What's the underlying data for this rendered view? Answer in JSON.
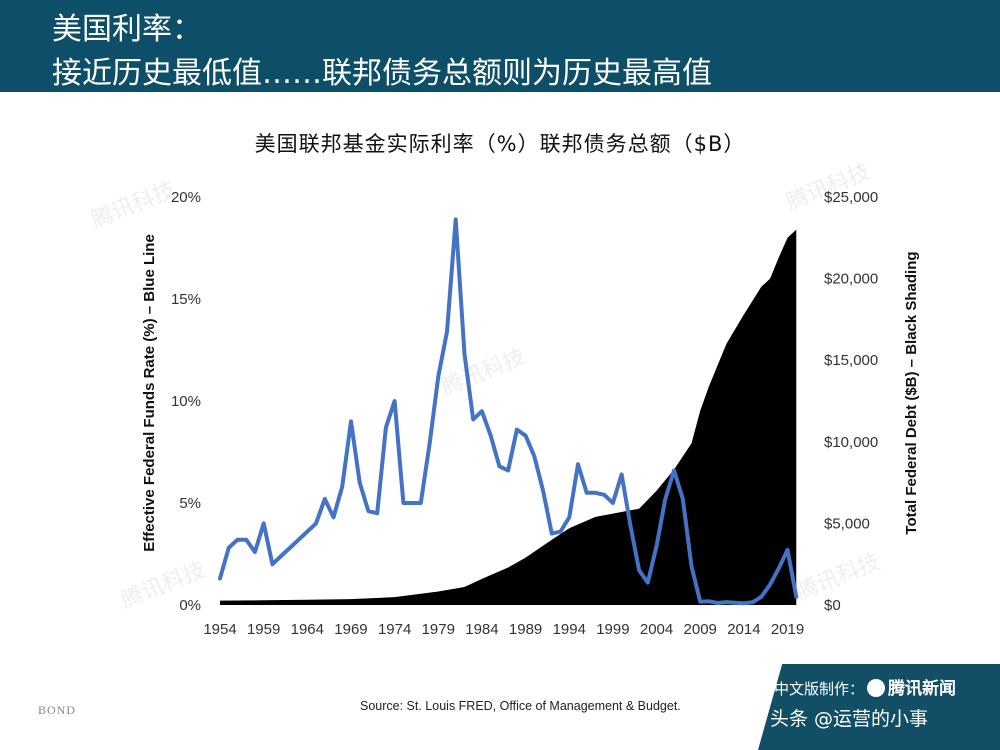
{
  "header": {
    "line1": "美国利率：",
    "line2": "接近历史最低值……联邦债务总额则为历史最高值"
  },
  "colors": {
    "header_bg": "#0d4f68",
    "rate_line": "#4472c4",
    "debt_fill": "#000000"
  },
  "chart_data": {
    "type": "line",
    "title": "美国联邦基金实际利率（%）联邦债务总额（$B）",
    "xlabel": "",
    "x_ticks": [
      "1954",
      "1959",
      "1964",
      "1969",
      "1974",
      "1979",
      "1984",
      "1989",
      "1994",
      "1999",
      "2004",
      "2009",
      "2014",
      "2019"
    ],
    "xlim": [
      1954,
      2021
    ],
    "y_left": {
      "label": "Effective Federal Funds Rate (%) – Blue Line",
      "ticks": [
        "0%",
        "5%",
        "10%",
        "15%",
        "20%"
      ],
      "lim": [
        0,
        20
      ]
    },
    "y_right": {
      "label": "Total Federal Debt ($B) – Black Shading",
      "ticks": [
        "$0",
        "$5,000",
        "$10,000",
        "$15,000",
        "$20,000",
        "$25,000"
      ],
      "lim": [
        0,
        25000
      ]
    },
    "grid": false,
    "series": [
      {
        "type": "line",
        "axis": "left",
        "x": [
          1954,
          1955,
          1956,
          1957,
          1958,
          1959,
          1960,
          1961,
          1962,
          1963,
          1964,
          1965,
          1966,
          1967,
          1968,
          1969,
          1970,
          1971,
          1972,
          1973,
          1974,
          1975,
          1976,
          1977,
          1978,
          1979,
          1980,
          1981,
          1982,
          1983,
          1984,
          1985,
          1986,
          1987,
          1988,
          1989,
          1990,
          1991,
          1992,
          1993,
          1994,
          1995,
          1996,
          1997,
          1998,
          1999,
          2000,
          2001,
          2002,
          2003,
          2004,
          2005,
          2006,
          2007,
          2008,
          2009,
          2010,
          2011,
          2012,
          2013,
          2014,
          2015,
          2016,
          2017,
          2018,
          2019,
          2020
        ],
        "values": [
          1.3,
          2.8,
          3.2,
          3.2,
          2.6,
          4.0,
          2.0,
          2.4,
          2.8,
          3.2,
          3.6,
          4.0,
          5.2,
          4.3,
          5.8,
          9.0,
          6.0,
          4.6,
          4.5,
          8.7,
          10.0,
          5.0,
          5.0,
          5.0,
          7.9,
          11.2,
          13.4,
          18.9,
          12.3,
          9.1,
          9.5,
          8.3,
          6.8,
          6.6,
          8.6,
          8.3,
          7.3,
          5.6,
          3.5,
          3.6,
          4.3,
          6.9,
          5.5,
          5.5,
          5.4,
          5.0,
          6.4,
          3.9,
          1.7,
          1.1,
          2.9,
          5.2,
          6.6,
          5.2,
          1.9,
          0.16,
          0.18,
          0.1,
          0.14,
          0.11,
          0.09,
          0.13,
          0.4,
          1.0,
          1.8,
          2.7,
          0.4
        ]
      },
      {
        "type": "area",
        "axis": "right",
        "x": [
          1954,
          1959,
          1964,
          1969,
          1974,
          1979,
          1982,
          1984,
          1987,
          1989,
          1992,
          1994,
          1997,
          1999,
          2002,
          2004,
          2006,
          2008,
          2009,
          2010,
          2012,
          2014,
          2016,
          2017,
          2018,
          2019,
          2020
        ],
        "values": [
          270,
          290,
          320,
          360,
          480,
          830,
          1100,
          1600,
          2300,
          2900,
          4000,
          4700,
          5400,
          5600,
          5900,
          7000,
          8300,
          9900,
          11900,
          13400,
          16000,
          17800,
          19500,
          20000,
          21300,
          22500,
          23000
        ]
      }
    ]
  },
  "source": "Source: St. Louis FRED, Office of Management & Budget.",
  "logo_text": "BOND",
  "watermark": "腾讯科技",
  "badge": {
    "made_by": "中文版制作：",
    "brand": "腾讯新闻",
    "author": "头条 @运营的小事"
  }
}
